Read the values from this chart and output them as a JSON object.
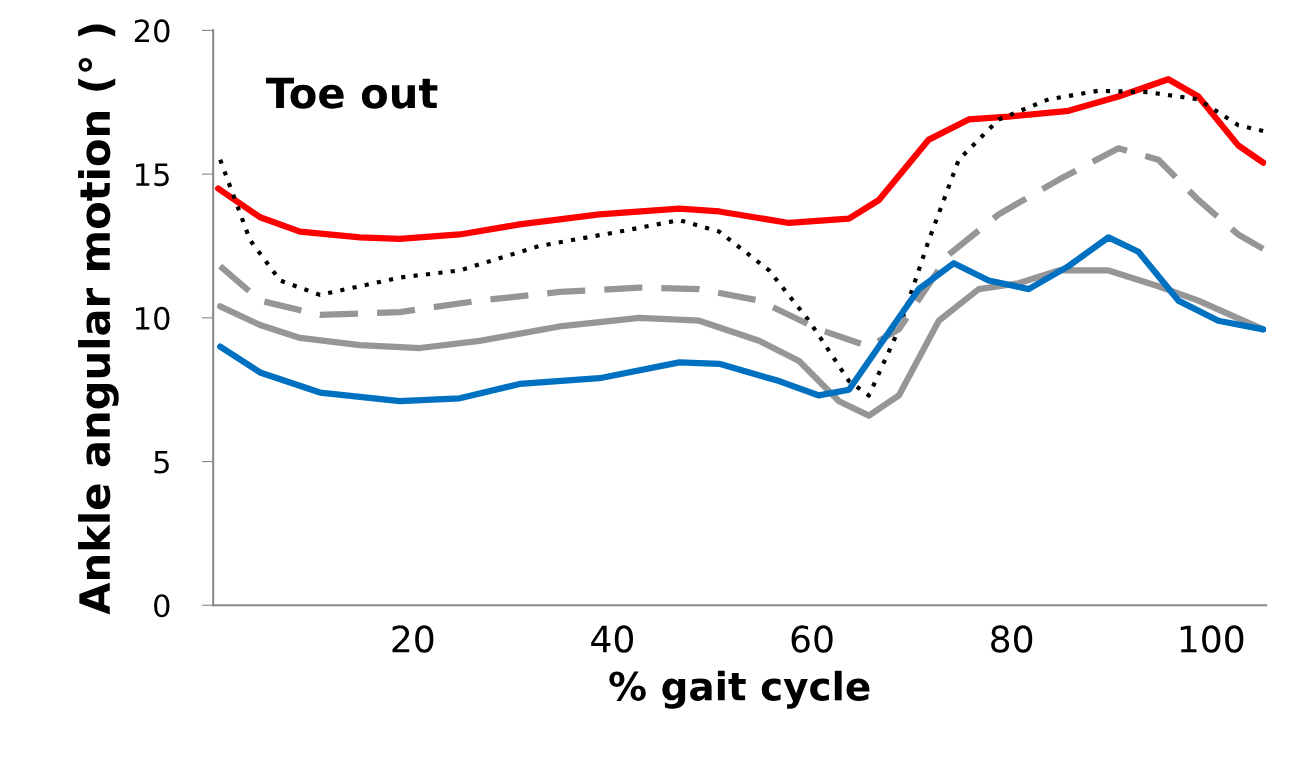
{
  "chart_data": {
    "type": "line",
    "title": "Toe out",
    "xlabel": "% gait cycle",
    "ylabel": "Ankle angular motion (° )",
    "xlim": [
      0,
      105.5
    ],
    "xticks": [
      20,
      40,
      60,
      80,
      100
    ],
    "ylim": [
      0,
      20
    ],
    "yticks": [
      0,
      5,
      10,
      15,
      20
    ],
    "grid": false,
    "series": [
      {
        "color": "#ff0000",
        "line_style": "solid",
        "x": [
          0.5,
          4.7,
          8.7,
          14.7,
          18.7,
          24.7,
          30.7,
          38.7,
          46.7,
          50.7,
          57.7,
          63.7,
          66.7,
          71.7,
          75.7,
          79.7,
          85.7,
          90.7,
          95.7,
          98.7,
          102.7,
          105.2
        ],
        "values": [
          14.5,
          13.5,
          13.0,
          12.8,
          12.75,
          12.9,
          13.25,
          13.6,
          13.8,
          13.7,
          13.3,
          13.45,
          14.1,
          16.2,
          16.9,
          17.0,
          17.2,
          17.7,
          18.3,
          17.7,
          16.0,
          15.4
        ]
      },
      {
        "color": "#000000",
        "line_style": "dotted",
        "x": [
          0.7,
          3.7,
          6.7,
          10.7,
          18.7,
          24.7,
          32.7,
          40.7,
          46.7,
          50.7,
          55.7,
          59.7,
          63.7,
          65.7,
          68.7,
          71.7,
          74.7,
          78.7,
          83.7,
          88.7,
          93.7,
          98.7,
          102.7,
          105.2
        ],
        "values": [
          15.5,
          12.7,
          11.3,
          10.8,
          11.4,
          11.65,
          12.5,
          13.0,
          13.4,
          13.0,
          11.65,
          9.9,
          7.8,
          7.3,
          9.6,
          12.7,
          15.5,
          16.9,
          17.6,
          17.9,
          17.85,
          17.6,
          16.7,
          16.5
        ]
      },
      {
        "color": "#969696",
        "line_style": "dashed",
        "x": [
          0.7,
          4.7,
          10.7,
          18.7,
          26.7,
          34.7,
          42.7,
          48.7,
          54.7,
          60.7,
          65.7,
          68.7,
          73.7,
          78.7,
          84.7,
          90.7,
          94.7,
          98.7,
          102.7,
          105.2
        ],
        "values": [
          11.8,
          10.6,
          10.1,
          10.2,
          10.6,
          10.9,
          11.05,
          11.0,
          10.6,
          9.6,
          9.0,
          9.6,
          12.2,
          13.6,
          14.8,
          15.9,
          15.5,
          14.1,
          12.9,
          12.4
        ]
      },
      {
        "color": "#969696",
        "line_style": "solid",
        "x": [
          0.7,
          4.7,
          8.7,
          14.7,
          20.7,
          26.7,
          34.7,
          42.7,
          48.7,
          54.7,
          58.7,
          62.7,
          65.7,
          68.7,
          72.7,
          76.7,
          80.7,
          84.7,
          89.7,
          94.7,
          98.7,
          105.2
        ],
        "values": [
          10.4,
          9.75,
          9.3,
          9.05,
          8.95,
          9.2,
          9.7,
          10.0,
          9.9,
          9.2,
          8.5,
          7.1,
          6.6,
          7.3,
          9.9,
          11.0,
          11.2,
          11.65,
          11.65,
          11.1,
          10.6,
          9.6
        ]
      },
      {
        "color": "#0070c0",
        "line_style": "solid",
        "x": [
          0.7,
          4.7,
          10.7,
          18.7,
          24.7,
          30.7,
          38.7,
          46.7,
          50.7,
          56.7,
          60.7,
          63.7,
          66.7,
          70.7,
          74.2,
          77.7,
          81.7,
          85.7,
          89.7,
          92.7,
          96.7,
          100.7,
          105.2
        ],
        "values": [
          9.0,
          8.1,
          7.4,
          7.1,
          7.2,
          7.7,
          7.9,
          8.45,
          8.4,
          7.8,
          7.3,
          7.5,
          9.0,
          11.0,
          11.9,
          11.3,
          11.0,
          11.8,
          12.8,
          12.3,
          10.6,
          9.9,
          9.6
        ]
      }
    ]
  }
}
